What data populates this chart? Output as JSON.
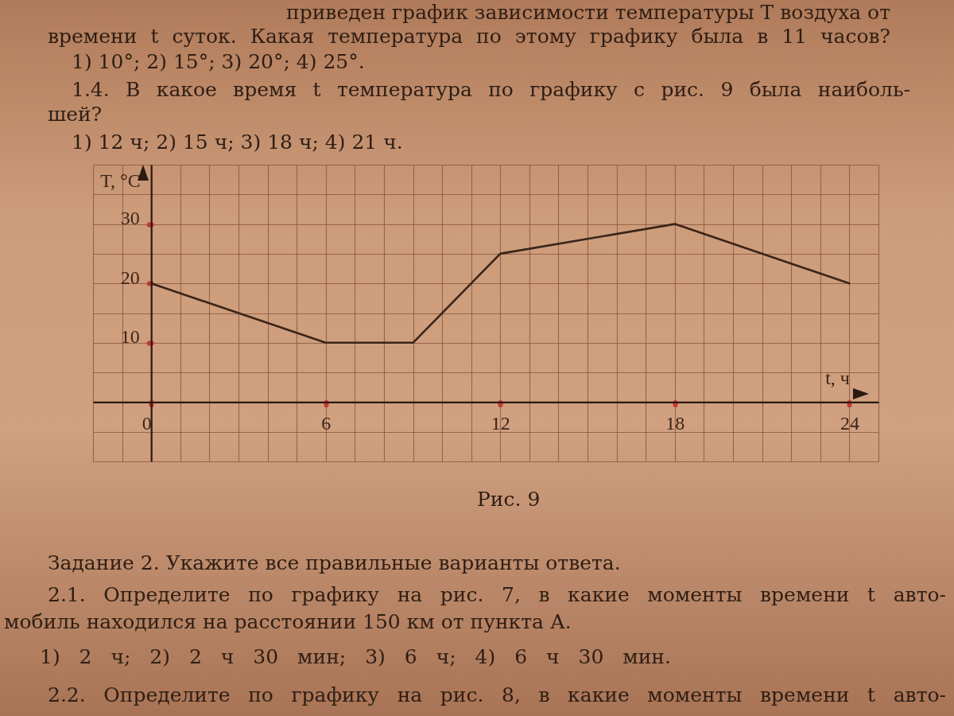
{
  "chart_data": {
    "type": "line",
    "xlabel": "t, ч",
    "ylabel": "T, °C",
    "x": [
      0,
      6,
      9,
      12,
      18,
      24
    ],
    "values": [
      20,
      10,
      10,
      25,
      30,
      20
    ],
    "color": "#3a2418",
    "xlim": [
      -2,
      25
    ],
    "ylim": [
      -10,
      40
    ],
    "xticks": [
      {
        "value": -2,
        "label": null
      },
      {
        "value": -1,
        "label": null
      },
      0,
      {
        "value": 1,
        "label": null
      },
      {
        "value": 2,
        "label": null
      },
      {
        "value": 3,
        "label": null
      },
      {
        "value": 4,
        "label": null
      },
      {
        "value": 5,
        "label": null
      },
      6,
      {
        "value": 7,
        "label": null
      },
      {
        "value": 8,
        "label": null
      },
      {
        "value": 9,
        "label": null
      },
      {
        "value": 10,
        "label": null
      },
      {
        "value": 11,
        "label": null
      },
      12,
      {
        "value": 13,
        "label": null
      },
      {
        "value": 14,
        "label": null
      },
      {
        "value": 15,
        "label": null
      },
      {
        "value": 16,
        "label": null
      },
      {
        "value": 17,
        "label": null
      },
      18,
      {
        "value": 19,
        "label": null
      },
      {
        "value": 20,
        "label": null
      },
      {
        "value": 21,
        "label": null
      },
      {
        "value": 22,
        "label": null
      },
      {
        "value": 23,
        "label": null
      },
      24,
      {
        "value": 25,
        "label": null
      }
    ],
    "yticks": [
      {
        "value": -10,
        "label": null
      },
      {
        "value": -5,
        "label": null
      },
      {
        "value": 0,
        "label": null
      },
      {
        "value": 5,
        "label": null
      },
      10,
      {
        "value": 15,
        "label": null
      },
      20,
      {
        "value": 25,
        "label": null
      },
      30,
      {
        "value": 35,
        "label": null
      },
      {
        "value": 40,
        "label": null
      }
    ],
    "grid": true,
    "annotations": [
      "приведен график зависимости температуры T воздуха от",
      "времени t суток. Какая температура по этому графику была в 11 часов?",
      "1) 10°; 2) 15°; 3) 20°; 4) 25°.",
      "1.4. В какое время t температура по графику с рис. 9 была наиболь-",
      "шей?",
      "1) 12 ч; 2) 15 ч; 3) 18 ч; 4) 21 ч.",
      "Рис. 9",
      "Задание 2. Укажите все правильные варианты ответа.",
      "2.1. Определите по графику на рис. 7, в какие моменты времени t авто-",
      "мобиль находился на расстоянии 150 км от пункта А.",
      "1) 2 ч; 2) 2 ч 30 мин; 3) 6 ч; 4) 6 ч 30 мин.",
      "2.2. Определите по графику на рис. 8, в какие моменты времени t авто-"
    ]
  }
}
